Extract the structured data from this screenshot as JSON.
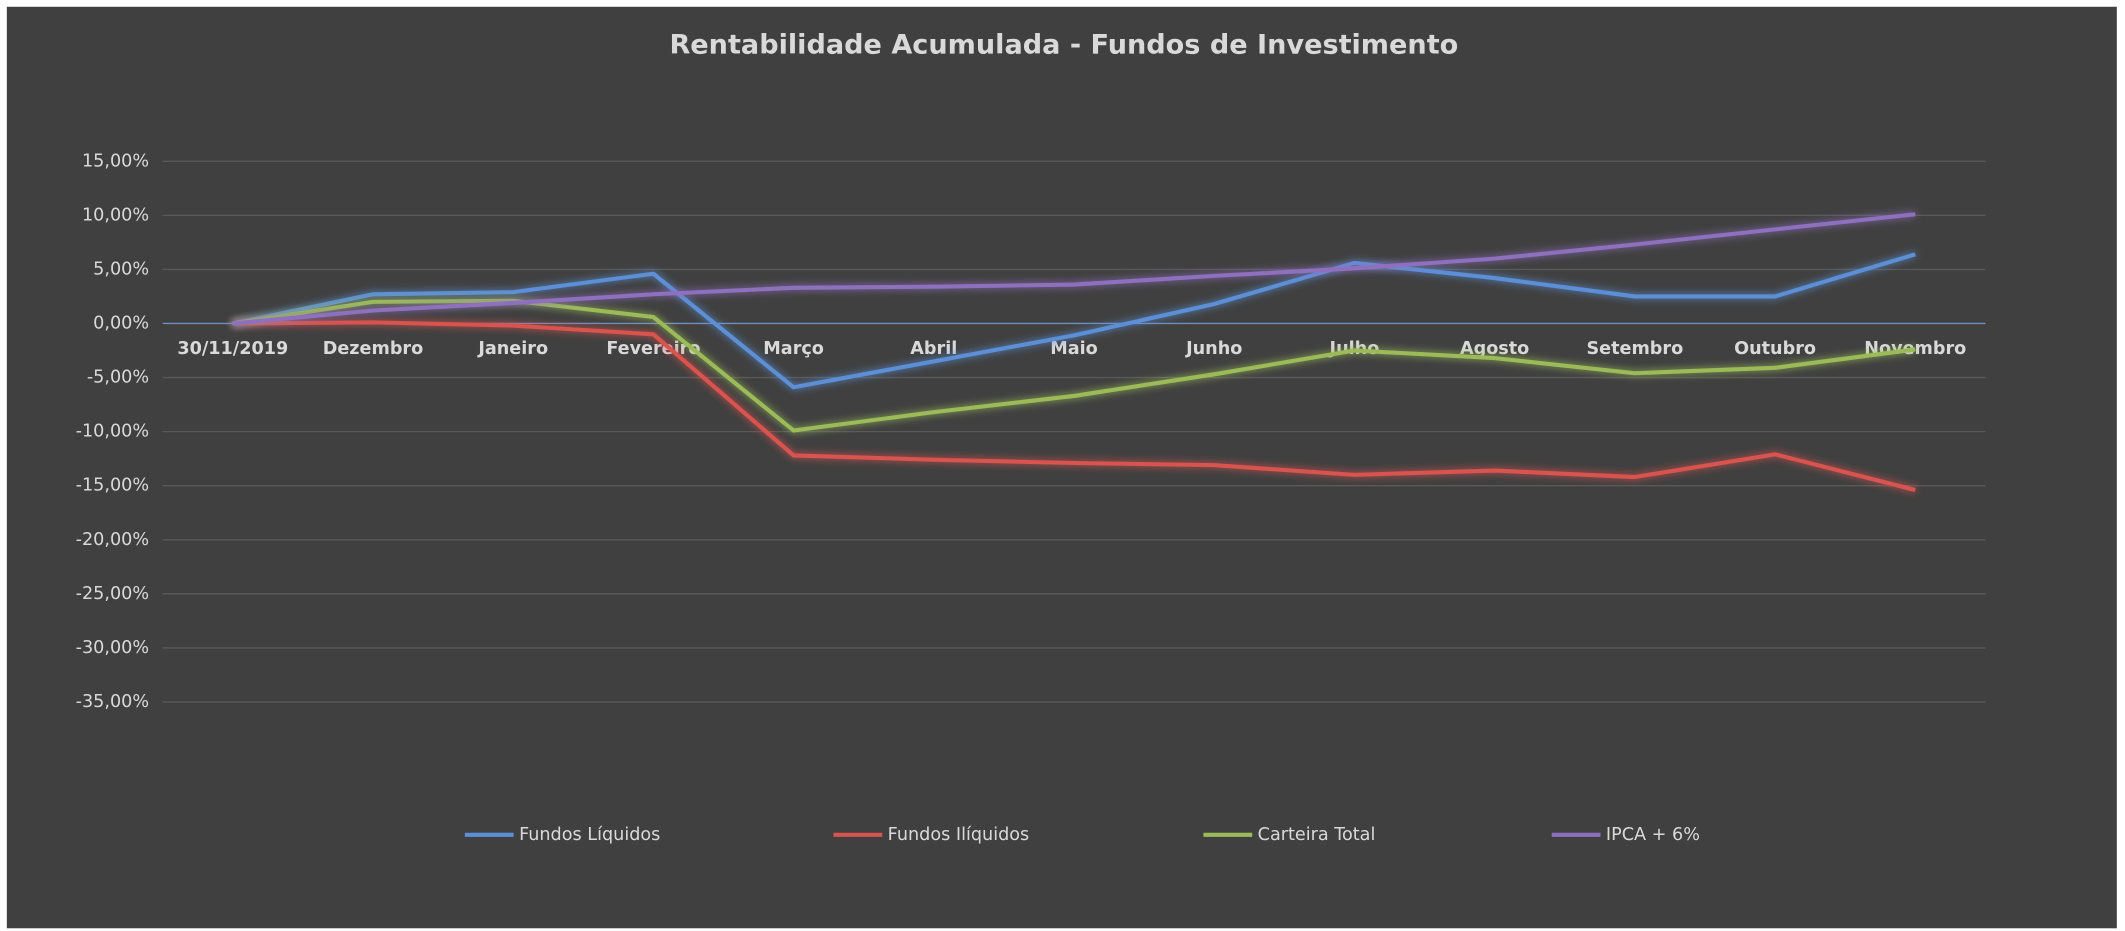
{
  "chart_data": {
    "type": "line",
    "title": "Rentabilidade Acumulada - Fundos de Investimento",
    "categories": [
      "30/11/2019",
      "Dezembro",
      "Janeiro",
      "Fevereiro",
      "Março",
      "Abril",
      "Maio",
      "Junho",
      "Julho",
      "Agosto",
      "Setembro",
      "Outubro",
      "Novembro"
    ],
    "series": [
      {
        "name": "Fundos Líquidos",
        "color": "#5b8fd6",
        "values": [
          0,
          2.7,
          2.9,
          4.6,
          -5.9,
          -3.5,
          -1.1,
          1.8,
          5.6,
          4.2,
          2.5,
          2.5,
          6.4
        ]
      },
      {
        "name": "Fundos Ilíquidos",
        "color": "#d9534f",
        "values": [
          0,
          0.1,
          -0.2,
          -1.0,
          -12.2,
          -12.6,
          -12.9,
          -13.1,
          -14.0,
          -13.6,
          -14.2,
          -12.1,
          -15.4
        ]
      },
      {
        "name": "Carteira Total",
        "color": "#9bbb59",
        "values": [
          0,
          2.0,
          2.1,
          0.6,
          -9.9,
          -8.2,
          -6.7,
          -4.7,
          -2.5,
          -3.2,
          -4.6,
          -4.1,
          -2.4
        ]
      },
      {
        "name": "IPCA + 6%",
        "color": "#8e6fbf",
        "values": [
          0,
          1.2,
          1.9,
          2.7,
          3.3,
          3.4,
          3.6,
          4.4,
          5.1,
          6.0,
          7.3,
          8.7,
          10.1
        ]
      }
    ],
    "ylim": [
      -35,
      15
    ],
    "yticks": [
      {
        "value": 15,
        "label": "15,00%"
      },
      {
        "value": 10,
        "label": "10,00%"
      },
      {
        "value": 5,
        "label": "5,00%"
      },
      {
        "value": 0,
        "label": "0,00%"
      },
      {
        "value": -5,
        "label": "-5,00%"
      },
      {
        "value": -10,
        "label": "-10,00%"
      },
      {
        "value": -15,
        "label": "-15,00%"
      },
      {
        "value": -20,
        "label": "-20,00%"
      },
      {
        "value": -25,
        "label": "-25,00%"
      },
      {
        "value": -30,
        "label": "-30,00%"
      },
      {
        "value": -35,
        "label": "-35,00%"
      }
    ],
    "grid": true,
    "legend": "bottom"
  }
}
